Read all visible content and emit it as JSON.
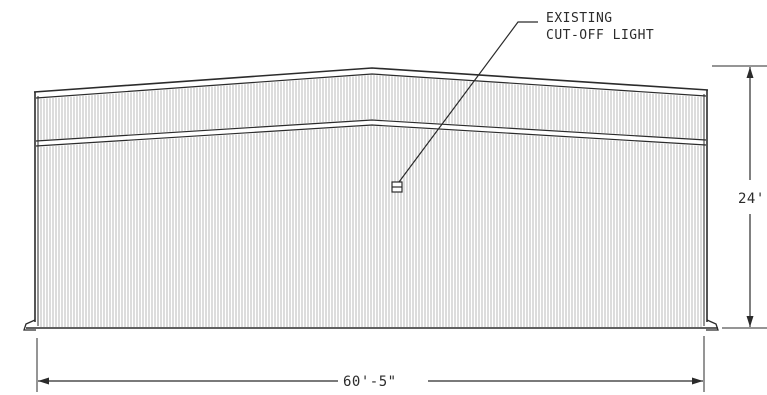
{
  "annotation": {
    "line1": "EXISTING",
    "line2": "CUT-OFF LIGHT"
  },
  "dimensions": {
    "height_label": "24'",
    "width_label": "60'-5\""
  },
  "colors": {
    "ink": "#2b2b2b",
    "siding": "#8a8a8a"
  }
}
